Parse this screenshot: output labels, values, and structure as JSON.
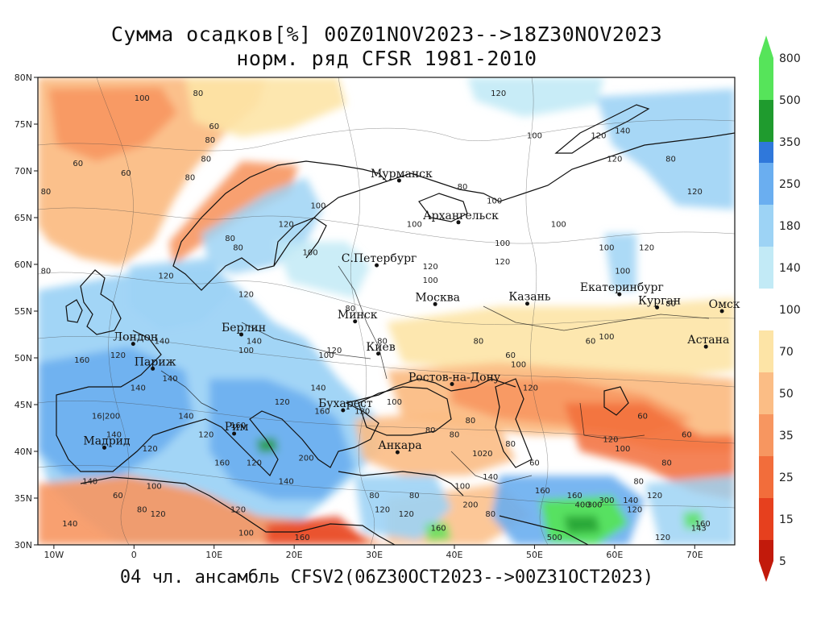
{
  "header": {
    "title_line1": "Сумма осадков[%] 00Z01NOV2023-->18Z30NOV2023",
    "title_line2": "норм. ряд CFSR 1981-2010"
  },
  "footer": {
    "text": "04 чл. ансамбль CFSV2(06Z30OCT2023-->00Z31OCT2023)"
  },
  "map": {
    "lon_range": [
      -12,
      75
    ],
    "lat_range": [
      30,
      80
    ],
    "lon_ticks": [
      {
        "value": -10,
        "label": "10W"
      },
      {
        "value": 0,
        "label": "0"
      },
      {
        "value": 10,
        "label": "10E"
      },
      {
        "value": 20,
        "label": "20E"
      },
      {
        "value": 30,
        "label": "30E"
      },
      {
        "value": 40,
        "label": "40E"
      },
      {
        "value": 50,
        "label": "50E"
      },
      {
        "value": 60,
        "label": "60E"
      },
      {
        "value": 70,
        "label": "70E"
      }
    ],
    "lat_ticks": [
      {
        "value": 80,
        "label": "80N"
      },
      {
        "value": 75,
        "label": "75N"
      },
      {
        "value": 70,
        "label": "70N"
      },
      {
        "value": 65,
        "label": "65N"
      },
      {
        "value": 60,
        "label": "60N"
      },
      {
        "value": 55,
        "label": "55N"
      },
      {
        "value": 50,
        "label": "50N"
      },
      {
        "value": 45,
        "label": "45N"
      },
      {
        "value": 40,
        "label": "40N"
      },
      {
        "value": 35,
        "label": "35N"
      },
      {
        "value": 30,
        "label": "30N"
      }
    ],
    "cities": [
      {
        "name": "Мурманск",
        "lon": 33.1,
        "lat": 68.97
      },
      {
        "name": "Архангельск",
        "lon": 40.5,
        "lat": 64.5
      },
      {
        "name": "С.Петербург",
        "lon": 30.3,
        "lat": 59.9
      },
      {
        "name": "Москва",
        "lon": 37.6,
        "lat": 55.75
      },
      {
        "name": "Казань",
        "lon": 49.1,
        "lat": 55.8
      },
      {
        "name": "Екатеринбург",
        "lon": 60.6,
        "lat": 56.8
      },
      {
        "name": "Курган",
        "lon": 65.3,
        "lat": 55.4
      },
      {
        "name": "Омск",
        "lon": 73.4,
        "lat": 55.0
      },
      {
        "name": "Астана",
        "lon": 71.4,
        "lat": 51.2
      },
      {
        "name": "Минск",
        "lon": 27.6,
        "lat": 53.9
      },
      {
        "name": "Берлин",
        "lon": 13.4,
        "lat": 52.5
      },
      {
        "name": "Лондон",
        "lon": -0.1,
        "lat": 51.5
      },
      {
        "name": "Париж",
        "lon": 2.35,
        "lat": 48.85
      },
      {
        "name": "Киев",
        "lon": 30.5,
        "lat": 50.45
      },
      {
        "name": "Ростов-на-Дону",
        "lon": 39.7,
        "lat": 47.2
      },
      {
        "name": "Бухарест",
        "lon": 26.1,
        "lat": 44.4
      },
      {
        "name": "Рим",
        "lon": 12.5,
        "lat": 41.9
      },
      {
        "name": "Мадрид",
        "lon": -3.7,
        "lat": 40.4
      },
      {
        "name": "Анкара",
        "lon": 32.9,
        "lat": 39.9
      }
    ],
    "contour_labels": [
      {
        "text": "100",
        "lon": 1,
        "lat": 77.5
      },
      {
        "text": "80",
        "lon": 8,
        "lat": 78
      },
      {
        "text": "60",
        "lon": 10,
        "lat": 74.5
      },
      {
        "text": "80",
        "lon": 9.5,
        "lat": 73
      },
      {
        "text": "60",
        "lon": -7,
        "lat": 70.5
      },
      {
        "text": "60",
        "lon": -1,
        "lat": 69.5
      },
      {
        "text": "80",
        "lon": -11,
        "lat": 67.5
      },
      {
        "text": "80",
        "lon": 7,
        "lat": 69
      },
      {
        "text": "80",
        "lon": 9,
        "lat": 71
      },
      {
        "text": "120",
        "lon": 19,
        "lat": 64
      },
      {
        "text": "100",
        "lon": 23,
        "lat": 66
      },
      {
        "text": "100",
        "lon": 22,
        "lat": 61
      },
      {
        "text": "80",
        "lon": 12,
        "lat": 62.5
      },
      {
        "text": "80",
        "lon": 13,
        "lat": 61.5
      },
      {
        "text": "120",
        "lon": 14,
        "lat": 56.5
      },
      {
        "text": "120",
        "lon": 4,
        "lat": 58.5
      },
      {
        "text": "80",
        "lon": -11,
        "lat": 59
      },
      {
        "text": "120",
        "lon": 45.5,
        "lat": 78
      },
      {
        "text": "100",
        "lon": 50,
        "lat": 73.5
      },
      {
        "text": "120",
        "lon": 58,
        "lat": 73.5
      },
      {
        "text": "140",
        "lon": 61,
        "lat": 74
      },
      {
        "text": "120",
        "lon": 60,
        "lat": 71
      },
      {
        "text": "80",
        "lon": 67,
        "lat": 71
      },
      {
        "text": "120",
        "lon": 70,
        "lat": 67.5
      },
      {
        "text": "100",
        "lon": 53,
        "lat": 64
      },
      {
        "text": "100",
        "lon": 45,
        "lat": 66.5
      },
      {
        "text": "80",
        "lon": 41,
        "lat": 68
      },
      {
        "text": "100",
        "lon": 46,
        "lat": 62
      },
      {
        "text": "100",
        "lon": 35,
        "lat": 64
      },
      {
        "text": "120",
        "lon": 37,
        "lat": 59.5
      },
      {
        "text": "100",
        "lon": 37,
        "lat": 58
      },
      {
        "text": "120",
        "lon": 46,
        "lat": 60
      },
      {
        "text": "100",
        "lon": 59,
        "lat": 61.5
      },
      {
        "text": "100",
        "lon": 61,
        "lat": 59
      },
      {
        "text": "120",
        "lon": 64,
        "lat": 61.5
      },
      {
        "text": "80",
        "lon": 43,
        "lat": 51.5
      },
      {
        "text": "60",
        "lon": 57,
        "lat": 51.5
      },
      {
        "text": "100",
        "lon": 59,
        "lat": 52
      },
      {
        "text": "80",
        "lon": 67,
        "lat": 55.5
      },
      {
        "text": "80",
        "lon": 31,
        "lat": 51.5
      },
      {
        "text": "80",
        "lon": 27,
        "lat": 55
      },
      {
        "text": "100",
        "lon": 24,
        "lat": 50
      },
      {
        "text": "120",
        "lon": 25,
        "lat": 50.5
      },
      {
        "text": "100",
        "lon": 14,
        "lat": 50.5
      },
      {
        "text": "140",
        "lon": 15,
        "lat": 51.5
      },
      {
        "text": "160",
        "lon": -6.5,
        "lat": 49.5
      },
      {
        "text": "140",
        "lon": 3.5,
        "lat": 51.5
      },
      {
        "text": "120",
        "lon": -2,
        "lat": 50
      },
      {
        "text": "140",
        "lon": 0.5,
        "lat": 46.5
      },
      {
        "text": "140",
        "lon": 4.5,
        "lat": 47.5
      },
      {
        "text": "16|200",
        "lon": -3.5,
        "lat": 43.5
      },
      {
        "text": "140",
        "lon": -2.5,
        "lat": 41.5
      },
      {
        "text": "120",
        "lon": 2,
        "lat": 40
      },
      {
        "text": "140",
        "lon": 6.5,
        "lat": 43.5
      },
      {
        "text": "160",
        "lon": 13,
        "lat": 42.5
      },
      {
        "text": "120",
        "lon": 9,
        "lat": 41.5
      },
      {
        "text": "160",
        "lon": 11,
        "lat": 38.5
      },
      {
        "text": "120",
        "lon": 15,
        "lat": 38.5
      },
      {
        "text": "200",
        "lon": 21.5,
        "lat": 39
      },
      {
        "text": "140",
        "lon": 19,
        "lat": 36.5
      },
      {
        "text": "160",
        "lon": 23.5,
        "lat": 44
      },
      {
        "text": "120",
        "lon": 28.5,
        "lat": 44
      },
      {
        "text": "140",
        "lon": 23,
        "lat": 46.5
      },
      {
        "text": "120",
        "lon": 18.5,
        "lat": 45
      },
      {
        "text": "80",
        "lon": 37,
        "lat": 42
      },
      {
        "text": "80",
        "lon": 40,
        "lat": 41.5
      },
      {
        "text": "80",
        "lon": 42,
        "lat": 43
      },
      {
        "text": "1020",
        "lon": 43.5,
        "lat": 39.5
      },
      {
        "text": "80",
        "lon": 47,
        "lat": 40.5
      },
      {
        "text": "140",
        "lon": 44.5,
        "lat": 37
      },
      {
        "text": "100",
        "lon": 41,
        "lat": 36
      },
      {
        "text": "200",
        "lon": 42,
        "lat": 34
      },
      {
        "text": "120",
        "lon": 31,
        "lat": 33.5
      },
      {
        "text": "120",
        "lon": 34,
        "lat": 33
      },
      {
        "text": "80",
        "lon": 30,
        "lat": 35
      },
      {
        "text": "80",
        "lon": 35,
        "lat": 35
      },
      {
        "text": "160",
        "lon": 38,
        "lat": 31.5
      },
      {
        "text": "80",
        "lon": 44.5,
        "lat": 33
      },
      {
        "text": "160",
        "lon": 51,
        "lat": 35.5
      },
      {
        "text": "160",
        "lon": 55,
        "lat": 35
      },
      {
        "text": "300",
        "lon": 59,
        "lat": 34.5
      },
      {
        "text": "400",
        "lon": 56,
        "lat": 34
      },
      {
        "text": "300",
        "lon": 57.5,
        "lat": 34
      },
      {
        "text": "140",
        "lon": 62,
        "lat": 34.5
      },
      {
        "text": "120",
        "lon": 65,
        "lat": 35
      },
      {
        "text": "120",
        "lon": 62.5,
        "lat": 33.5
      },
      {
        "text": "500",
        "lon": 52.5,
        "lat": 30.5
      },
      {
        "text": "120",
        "lon": 66,
        "lat": 30.5
      },
      {
        "text": "160",
        "lon": 71,
        "lat": 32
      },
      {
        "text": "143",
        "lon": 70.5,
        "lat": 31.5
      },
      {
        "text": "100",
        "lon": 61,
        "lat": 40
      },
      {
        "text": "120",
        "lon": 59.5,
        "lat": 41
      },
      {
        "text": "60",
        "lon": 63.5,
        "lat": 43.5
      },
      {
        "text": "60",
        "lon": 69,
        "lat": 41.5
      },
      {
        "text": "80",
        "lon": 66.5,
        "lat": 38.5
      },
      {
        "text": "80",
        "lon": 63,
        "lat": 36.5
      },
      {
        "text": "100",
        "lon": 2.5,
        "lat": 36
      },
      {
        "text": "60",
        "lon": -2,
        "lat": 35
      },
      {
        "text": "140",
        "lon": -5.5,
        "lat": 36.5
      },
      {
        "text": "80",
        "lon": 1,
        "lat": 33.5
      },
      {
        "text": "120",
        "lon": 3,
        "lat": 33
      },
      {
        "text": "140",
        "lon": -8,
        "lat": 32
      },
      {
        "text": "120",
        "lon": 13,
        "lat": 33.5
      },
      {
        "text": "100",
        "lon": 14,
        "lat": 31
      },
      {
        "text": "160",
        "lon": 21,
        "lat": 30.5
      },
      {
        "text": "60",
        "lon": 50,
        "lat": 38.5
      },
      {
        "text": "60",
        "lon": 47,
        "lat": 50
      },
      {
        "text": "100",
        "lon": 48,
        "lat": 49
      },
      {
        "text": "120",
        "lon": 49.5,
        "lat": 46.5
      },
      {
        "text": "100",
        "lon": 32.5,
        "lat": 45
      }
    ]
  },
  "colorbar": {
    "ticks": [
      "800",
      "500",
      "350",
      "250",
      "180",
      "140",
      "100",
      "70",
      "50",
      "35",
      "25",
      "15",
      "5"
    ]
  },
  "legend_colors": {
    "c5": "#c21a0b",
    "c15": "#e6401e",
    "c25": "#f26d3b",
    "c35": "#f79660",
    "c50": "#fbbd85",
    "c70": "#fde4a6",
    "c100": "#ffffff",
    "c140": "#c2eaf6",
    "c180": "#9dd3f5",
    "c250": "#6aaef0",
    "c350": "#2f78db",
    "c500": "#1f9b2e",
    "c800": "#56e45a"
  }
}
